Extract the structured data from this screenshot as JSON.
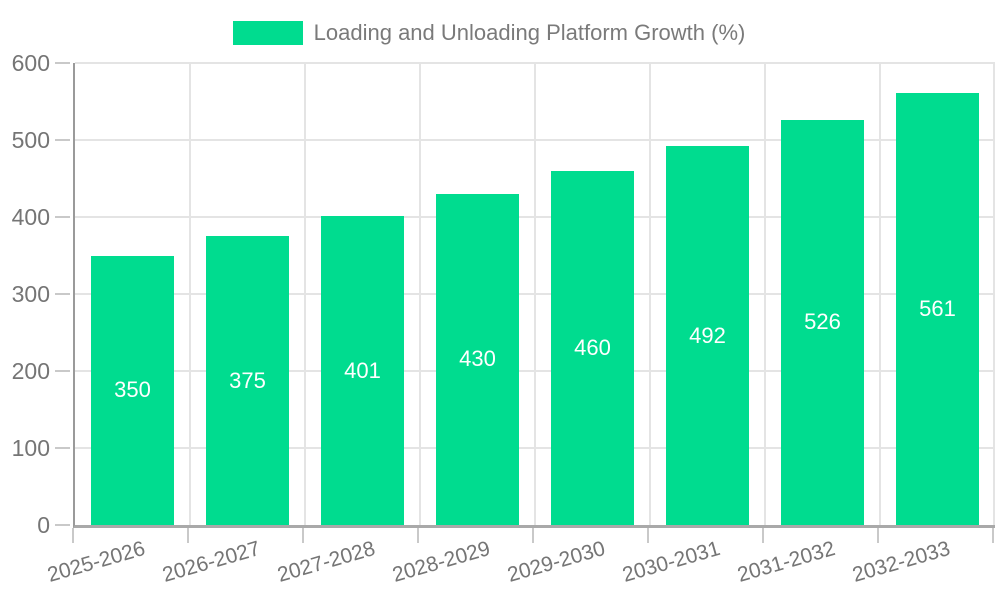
{
  "legend": {
    "label": "Loading and Unloading Platform Growth (%)",
    "swatch_color": "#00dc8f"
  },
  "chart_data": {
    "type": "bar",
    "title": "Loading and Unloading Platform Growth (%)",
    "categories": [
      "2025-2026",
      "2026-2027",
      "2027-2028",
      "2028-2029",
      "2029-2030",
      "2030-2031",
      "2031-2032",
      "2032-2033"
    ],
    "values": [
      350,
      375,
      401,
      430,
      460,
      492,
      526,
      561
    ],
    "xlabel": "",
    "ylabel": "",
    "ylim": [
      0,
      600
    ],
    "yticks": [
      0,
      100,
      200,
      300,
      400,
      500,
      600
    ],
    "bar_color": "#00dc8f",
    "value_label_color": "#ffffff",
    "grid": true,
    "legend_position": "top",
    "value_labels_inside_bars": true
  },
  "colors": {
    "background": "#ffffff",
    "gridline": "#e4e4e4",
    "axis_line": "#a0a0a0",
    "tick": "#c9c9c9",
    "axis_text": "#757575",
    "bar": "#00dc8f",
    "bar_label_text": "#ffffff"
  }
}
